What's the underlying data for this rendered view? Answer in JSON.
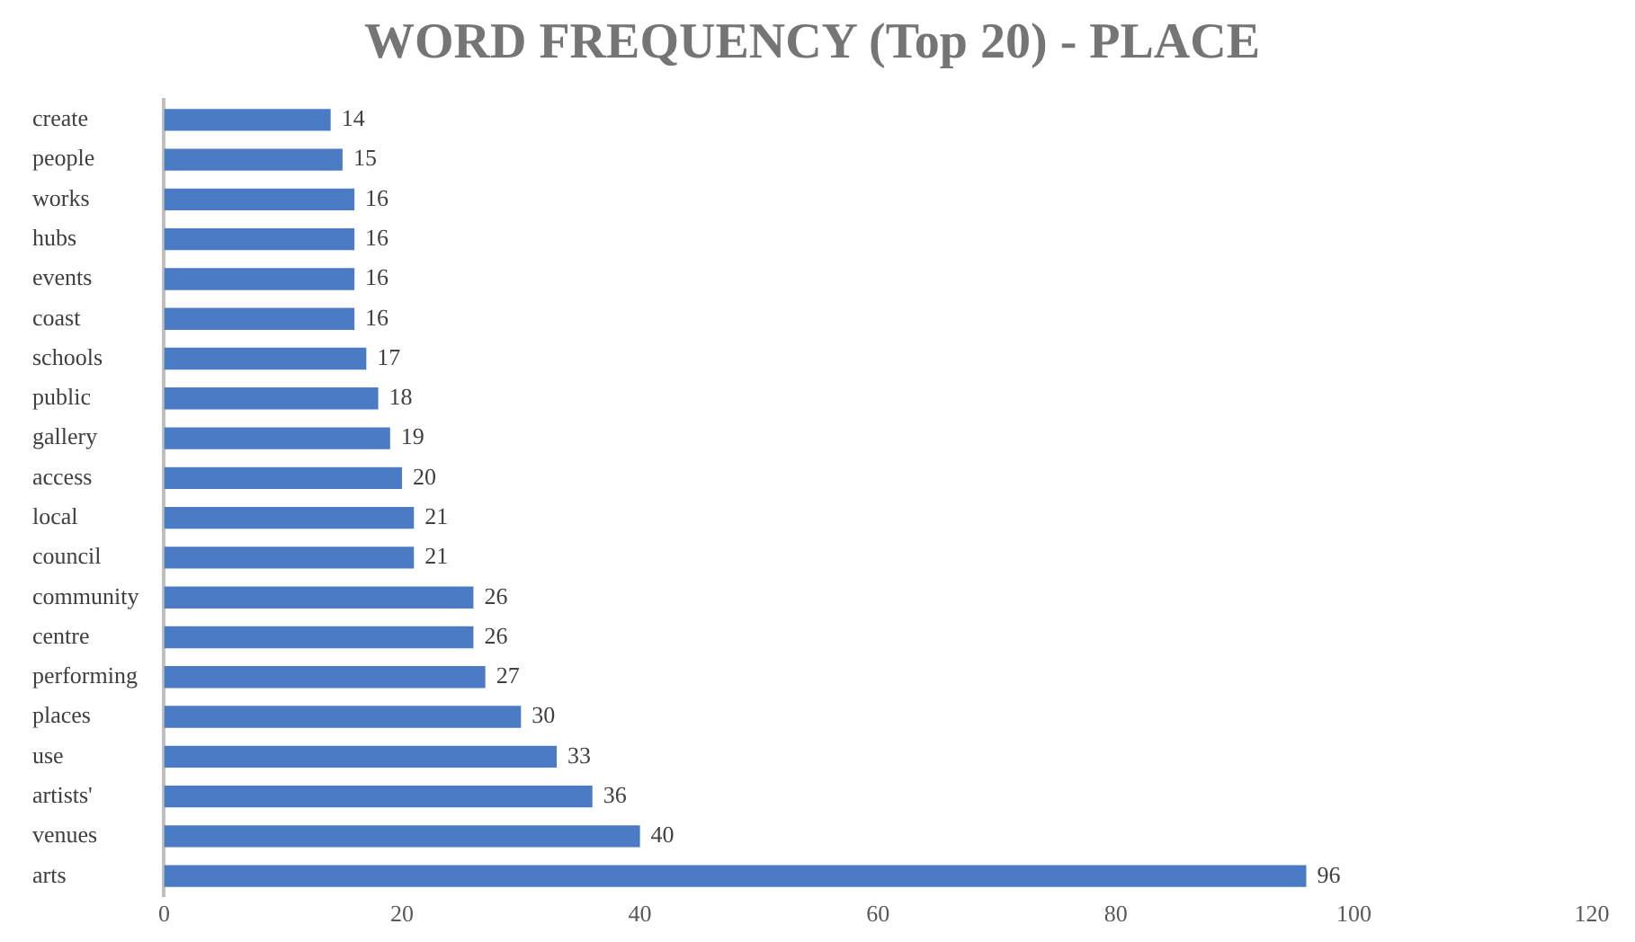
{
  "chart_data": {
    "type": "bar",
    "orientation": "horizontal",
    "title": "WORD FREQUENCY (Top 20) - PLACE",
    "categories": [
      "create",
      "people",
      "works",
      "hubs",
      "events",
      "coast",
      "schools",
      "public",
      "gallery",
      "access",
      "local",
      "council",
      "community",
      "centre",
      "performing",
      "places",
      "use",
      "artists'",
      "venues",
      "arts"
    ],
    "values": [
      14,
      15,
      16,
      16,
      16,
      16,
      17,
      18,
      19,
      20,
      21,
      21,
      26,
      26,
      27,
      30,
      33,
      36,
      40,
      96
    ],
    "color": "#4a7bc4",
    "xlim": [
      0,
      120
    ],
    "xticks": [
      0,
      20,
      40,
      60,
      80,
      100,
      120
    ],
    "grid": false,
    "legend": false,
    "data_labels": true
  }
}
